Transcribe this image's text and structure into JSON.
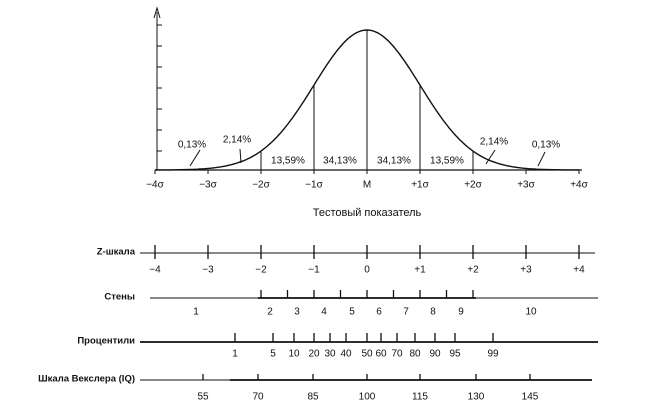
{
  "chart": {
    "sigma_labels": [
      "−4σ",
      "−3σ",
      "−2σ",
      "−1σ",
      "M",
      "+1σ",
      "+2σ",
      "+3σ",
      "+4σ"
    ],
    "percent_labels": [
      "0,13%",
      "2,14%",
      "13,59%",
      "34,13%",
      "34,13%",
      "13,59%",
      "2,14%",
      "0,13%"
    ],
    "x_axis_title": "Тестовый показатель"
  },
  "scales": [
    {
      "name": "Z-шкала",
      "labels": [
        "−4",
        "−3",
        "−2",
        "−1",
        "0",
        "+1",
        "+2",
        "+3",
        "+4"
      ]
    },
    {
      "name": "Стены",
      "labels": [
        "1",
        "2",
        "3",
        "4",
        "5",
        "6",
        "7",
        "8",
        "9",
        "10"
      ]
    },
    {
      "name": "Процентили",
      "labels": [
        "1",
        "5",
        "10",
        "20",
        "30",
        "40",
        "50",
        "60",
        "70",
        "80",
        "90",
        "95",
        "99"
      ]
    },
    {
      "name": "Шкала Векслера (IQ)",
      "labels": [
        "55",
        "70",
        "85",
        "100",
        "115",
        "130",
        "145"
      ]
    }
  ]
}
